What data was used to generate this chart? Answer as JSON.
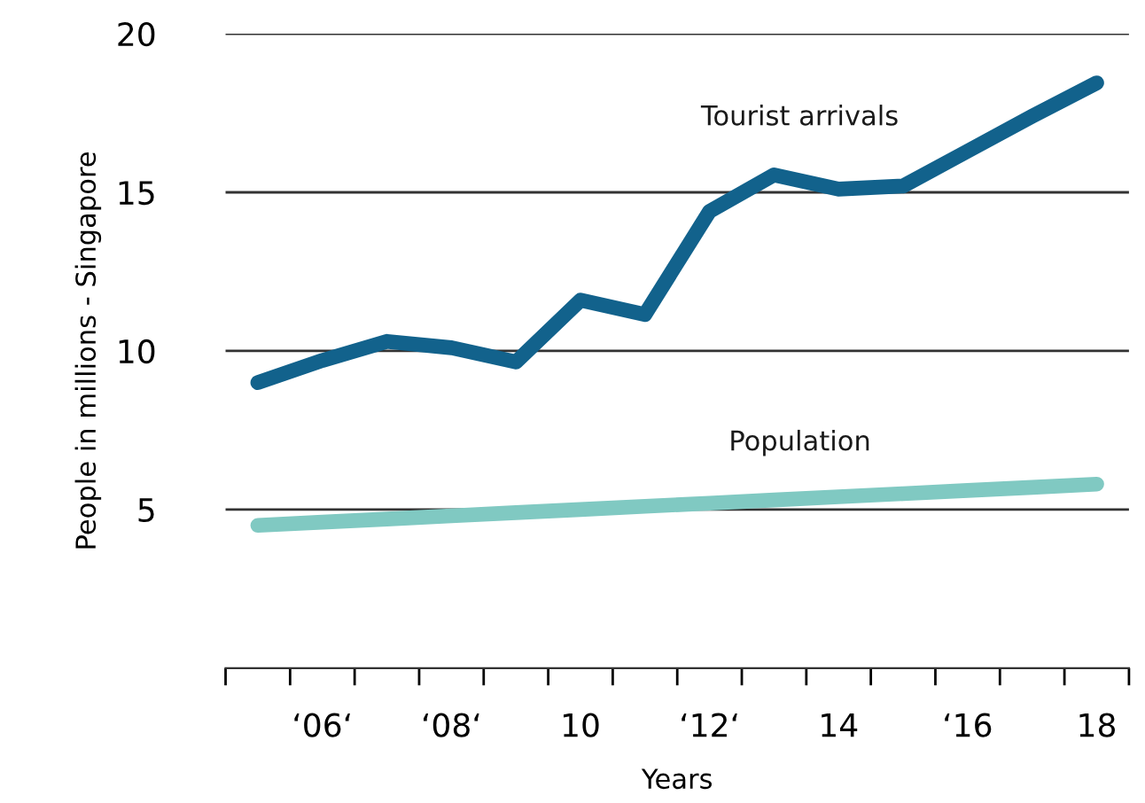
{
  "chart_data": {
    "type": "line",
    "xlabel": "Years",
    "ylabel": "People in millions - Singapore",
    "x": [
      5,
      6,
      7,
      8,
      9,
      10,
      11,
      12,
      13,
      14,
      15,
      16,
      17,
      18
    ],
    "series": [
      {
        "name": "Tourist arrivals",
        "color": "#12628c",
        "values": [
          9.0,
          9.7,
          10.3,
          10.1,
          9.65,
          11.6,
          11.15,
          14.4,
          15.55,
          15.1,
          15.2,
          16.3,
          17.4,
          18.45
        ]
      },
      {
        "name": "Population",
        "color": "#80c9c2",
        "values": [
          4.5,
          4.6,
          4.7,
          4.8,
          4.9,
          5.0,
          5.1,
          5.2,
          5.3,
          5.4,
          5.5,
          5.6,
          5.7,
          5.8
        ]
      }
    ],
    "xlim": [
      4.5,
      18.5
    ],
    "xticks": [
      {
        "value": 4.5,
        "label": null
      },
      {
        "value": 5.5,
        "label": null
      },
      {
        "value": 6,
        "label": "‘06‘"
      },
      {
        "value": 6.5,
        "label": null
      },
      {
        "value": 7.5,
        "label": null
      },
      {
        "value": 8,
        "label": "‘08‘"
      },
      {
        "value": 8.5,
        "label": null
      },
      {
        "value": 9.5,
        "label": null
      },
      10,
      {
        "value": 10.5,
        "label": null
      },
      {
        "value": 11.5,
        "label": null
      },
      {
        "value": 12,
        "label": "‘12‘"
      },
      {
        "value": 12.5,
        "label": null
      },
      {
        "value": 13.5,
        "label": null
      },
      14,
      {
        "value": 14.5,
        "label": null
      },
      {
        "value": 15.5,
        "label": null
      },
      {
        "value": 16,
        "label": "‘16"
      },
      {
        "value": 16.5,
        "label": null
      },
      {
        "value": 17.5,
        "label": null
      },
      18,
      {
        "value": 18.5,
        "label": null
      }
    ],
    "ylim": [
      0,
      20
    ],
    "yticks": [
      5,
      10,
      15,
      20
    ],
    "grid": "y",
    "legend": false,
    "marker": "none",
    "line_style": "solid"
  }
}
